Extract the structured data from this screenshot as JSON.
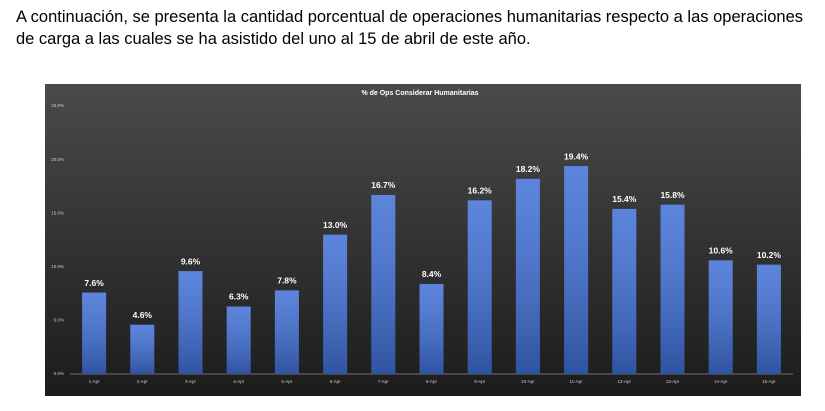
{
  "paragraph": "A continuación, se presenta la cantidad porcentual de operaciones humanitarias respecto a las operaciones de carga a las cuales se ha asistido del uno al 15 de abril de este año.",
  "chart_data": {
    "type": "bar",
    "title": "% de Ops Considerar Humanitarias",
    "categories": [
      "1-Apr",
      "2-Apr",
      "3-Apr",
      "4-Apr",
      "5-Apr",
      "6-Apr",
      "7-Apr",
      "8-Apr",
      "9-Apr",
      "10-Apr",
      "11-Apr",
      "12-Apr",
      "13-Apr",
      "14-Apr",
      "15-Apr"
    ],
    "values": [
      7.6,
      4.6,
      9.6,
      6.3,
      7.8,
      13.0,
      16.7,
      8.4,
      16.2,
      18.2,
      19.4,
      15.4,
      15.8,
      10.6,
      10.2
    ],
    "value_labels": [
      "7.6%",
      "4.6%",
      "9.6%",
      "6.3%",
      "7.8%",
      "13.0%",
      "16.7%",
      "8.4%",
      "16.2%",
      "18.2%",
      "19.4%",
      "15.4%",
      "15.8%",
      "10.6%",
      "10.2%"
    ],
    "color": "#3f6fd6",
    "ylim": [
      0,
      25
    ],
    "yticks": [
      {
        "value": 0,
        "label": "0.0%"
      },
      {
        "value": 5,
        "label": "5.0%"
      },
      {
        "value": 10,
        "label": "10.0%"
      },
      {
        "value": 15,
        "label": "15.0%"
      },
      {
        "value": 20,
        "label": "20.0%"
      },
      {
        "value": 25,
        "label": "25.0%"
      }
    ],
    "grid": false
  }
}
